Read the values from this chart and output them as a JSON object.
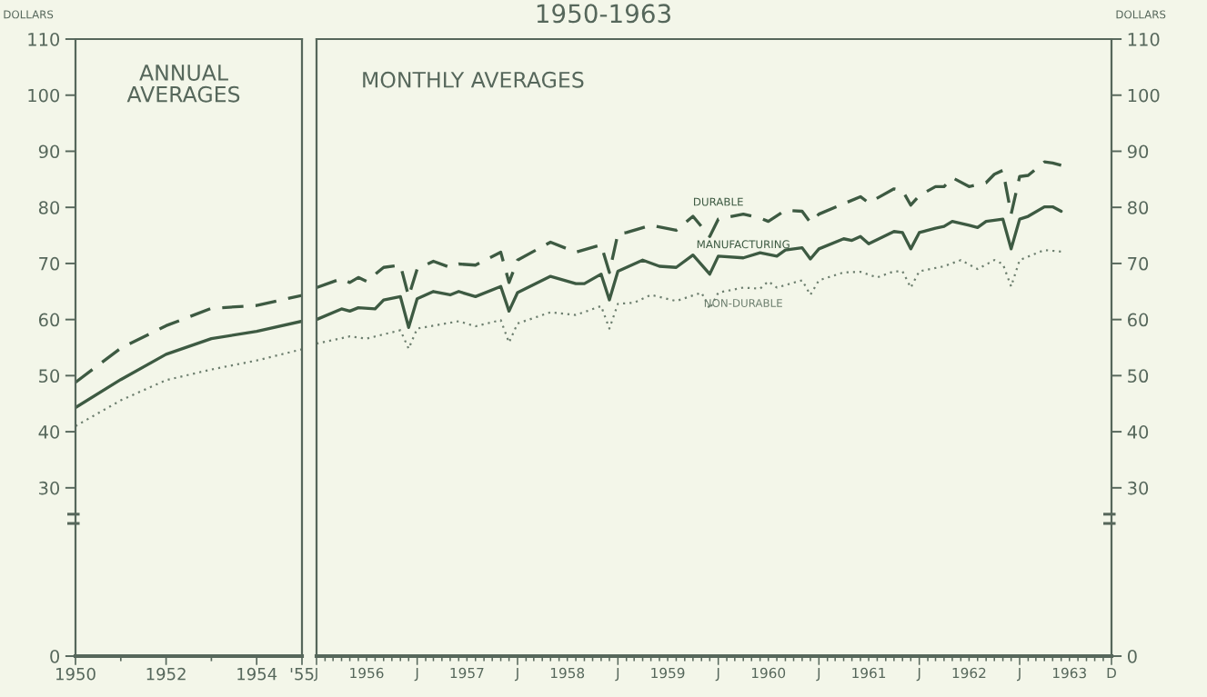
{
  "chart_data": [
    {
      "type": "line",
      "ylabel": "DOLLARS",
      "annotations": [
        "ANNUAL\nAVERAGES"
      ],
      "x": [
        1950,
        1951,
        1952,
        1953,
        1954,
        1955
      ],
      "xlim": [
        1950,
        1955
      ],
      "xticks": [
        1950,
        1952,
        1954,
        {
          "value": 1955,
          "label": "'55"
        }
      ],
      "ylim": [
        0,
        110
      ],
      "yticks": [
        0,
        30,
        40,
        50,
        60,
        70,
        80,
        90,
        100,
        110
      ],
      "series": [
        {
          "color": "#3d5a42",
          "line_style": "dashed",
          "values": [
            48.8,
            54.9,
            58.9,
            62.0,
            62.5,
            64.3
          ]
        },
        {
          "color": "#3d5a42",
          "line_style": "solid",
          "values": [
            44.3,
            49.3,
            53.8,
            56.6,
            57.9,
            59.7
          ]
        },
        {
          "color": "#6d7f6f",
          "line_style": "dotted",
          "values": [
            41.0,
            45.6,
            49.2,
            51.1,
            52.7,
            54.7
          ]
        }
      ]
    },
    {
      "type": "line",
      "title": "1950-1963",
      "ylabel": "DOLLARS",
      "annotations": [
        "MONTHLY AVERAGES"
      ],
      "xlim": [
        "1956-01",
        "1963-12"
      ],
      "xticks": [
        {
          "value": "1956-01",
          "label": "J"
        },
        {
          "value": "1956-07",
          "label": "1956"
        },
        {
          "value": "1957-01",
          "label": "J"
        },
        {
          "value": "1957-07",
          "label": "1957"
        },
        {
          "value": "1958-01",
          "label": "J"
        },
        {
          "value": "1958-07",
          "label": "1958"
        },
        {
          "value": "1959-01",
          "label": "J"
        },
        {
          "value": "1959-07",
          "label": "1959"
        },
        {
          "value": "1960-01",
          "label": "J"
        },
        {
          "value": "1960-07",
          "label": "1960"
        },
        {
          "value": "1961-01",
          "label": "J"
        },
        {
          "value": "1961-07",
          "label": "1961"
        },
        {
          "value": "1962-01",
          "label": "J"
        },
        {
          "value": "1962-07",
          "label": "1962"
        },
        {
          "value": "1963-01",
          "label": "J"
        },
        {
          "value": "1963-07",
          "label": "1963"
        },
        {
          "value": "1963-12",
          "label": "D"
        }
      ],
      "ylim": [
        0,
        110
      ],
      "yticks": [
        0,
        30,
        40,
        50,
        60,
        70,
        80,
        90,
        100,
        110
      ],
      "series": [
        {
          "name": "DURABLE",
          "color": "#3d5a42",
          "line_style": "dashed",
          "x": [
            "1956-01",
            "1956-04",
            "1956-05",
            "1956-06",
            "1956-07",
            "1956-09",
            "1956-11",
            "1956-12",
            "1957-01",
            "1957-03",
            "1957-05",
            "1957-06",
            "1957-08",
            "1957-11",
            "1957-12",
            "1958-01",
            "1958-05",
            "1958-08",
            "1958-11",
            "1958-12",
            "1959-01",
            "1959-02",
            "1959-05",
            "1959-08",
            "1959-10",
            "1959-12",
            "1960-01",
            "1960-04",
            "1960-06",
            "1960-07",
            "1960-09",
            "1960-11",
            "1960-12",
            "1961-01",
            "1961-06",
            "1961-07",
            "1961-10",
            "1961-11",
            "1961-12",
            "1962-01",
            "1962-03",
            "1962-04",
            "1962-05",
            "1962-07",
            "1962-09",
            "1962-10",
            "1962-11",
            "1962-12",
            "1963-01",
            "1963-02",
            "1963-04",
            "1963-05",
            "1963-06"
          ],
          "values": [
            65.7,
            67.3,
            66.6,
            67.5,
            66.8,
            69.3,
            69.7,
            64.1,
            69.0,
            70.4,
            69.3,
            69.9,
            69.7,
            72.0,
            66.6,
            70.6,
            73.8,
            72.0,
            73.3,
            68.4,
            75.3,
            75.5,
            76.8,
            75.9,
            78.4,
            74.8,
            77.9,
            78.8,
            78.1,
            77.5,
            79.5,
            79.3,
            77.3,
            78.8,
            81.9,
            80.8,
            83.3,
            83.0,
            80.4,
            82.1,
            83.7,
            83.7,
            85.3,
            83.7,
            84.4,
            85.9,
            86.6,
            78.8,
            85.5,
            85.7,
            88.1,
            87.9,
            87.5
          ]
        },
        {
          "name": "MANUFACTURING",
          "color": "#3d5a42",
          "line_style": "solid",
          "x": [
            "1956-01",
            "1956-04",
            "1956-05",
            "1956-06",
            "1956-08",
            "1956-09",
            "1956-11",
            "1956-12",
            "1957-01",
            "1957-03",
            "1957-05",
            "1957-06",
            "1957-08",
            "1957-11",
            "1957-12",
            "1958-01",
            "1958-05",
            "1958-08",
            "1958-09",
            "1958-11",
            "1958-12",
            "1959-01",
            "1959-04",
            "1959-06",
            "1959-08",
            "1959-10",
            "1959-12",
            "1960-01",
            "1960-04",
            "1960-06",
            "1960-08",
            "1960-09",
            "1960-11",
            "1960-12",
            "1961-01",
            "1961-04",
            "1961-05",
            "1961-06",
            "1961-07",
            "1961-10",
            "1961-11",
            "1961-12",
            "1962-01",
            "1962-03",
            "1962-04",
            "1962-05",
            "1962-07",
            "1962-08",
            "1962-09",
            "1962-11",
            "1962-12",
            "1963-01",
            "1963-02",
            "1963-04",
            "1963-05",
            "1963-06"
          ],
          "values": [
            60.0,
            61.9,
            61.5,
            62.1,
            61.9,
            63.5,
            64.1,
            58.6,
            63.7,
            65.0,
            64.4,
            65.0,
            64.1,
            65.9,
            61.5,
            64.8,
            67.7,
            66.4,
            66.4,
            68.1,
            63.5,
            68.6,
            70.6,
            69.5,
            69.3,
            71.5,
            68.1,
            71.3,
            71.0,
            71.9,
            71.3,
            72.4,
            72.8,
            70.8,
            72.6,
            74.4,
            74.1,
            74.8,
            73.5,
            75.7,
            75.5,
            72.6,
            75.5,
            76.3,
            76.6,
            77.5,
            76.8,
            76.4,
            77.5,
            77.9,
            72.6,
            77.9,
            78.4,
            80.1,
            80.1,
            79.3
          ]
        },
        {
          "name": "NON-DURABLE",
          "color": "#6d7f6f",
          "line_style": "dotted",
          "x": [
            "1956-01",
            "1956-05",
            "1956-07",
            "1956-11",
            "1956-12",
            "1957-01",
            "1957-06",
            "1957-08",
            "1957-11",
            "1957-12",
            "1958-01",
            "1958-05",
            "1958-08",
            "1958-11",
            "1958-12",
            "1959-01",
            "1959-03",
            "1959-05",
            "1959-08",
            "1959-11",
            "1959-12",
            "1960-01",
            "1960-04",
            "1960-06",
            "1960-07",
            "1960-08",
            "1960-11",
            "1960-12",
            "1961-01",
            "1961-04",
            "1961-06",
            "1961-08",
            "1961-10",
            "1961-11",
            "1961-12",
            "1962-01",
            "1962-04",
            "1962-06",
            "1962-08",
            "1962-10",
            "1962-11",
            "1962-12",
            "1963-01",
            "1963-04",
            "1963-06"
          ],
          "values": [
            55.7,
            57.0,
            56.6,
            58.1,
            54.8,
            58.4,
            59.7,
            58.8,
            59.9,
            55.9,
            59.3,
            61.3,
            60.8,
            62.4,
            58.4,
            62.8,
            63.0,
            64.4,
            63.3,
            64.8,
            61.9,
            64.8,
            65.7,
            65.5,
            66.8,
            65.7,
            67.0,
            64.4,
            67.0,
            68.4,
            68.5,
            67.5,
            68.6,
            68.6,
            65.7,
            68.6,
            69.5,
            70.6,
            69.0,
            70.6,
            69.9,
            65.9,
            70.6,
            72.4,
            72.1
          ]
        }
      ]
    }
  ]
}
